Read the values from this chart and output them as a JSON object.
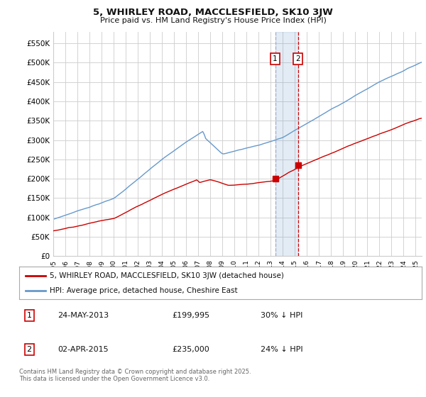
{
  "title": "5, WHIRLEY ROAD, MACCLESFIELD, SK10 3JW",
  "subtitle": "Price paid vs. HM Land Registry's House Price Index (HPI)",
  "legend_line1": "5, WHIRLEY ROAD, MACCLESFIELD, SK10 3JW (detached house)",
  "legend_line2": "HPI: Average price, detached house, Cheshire East",
  "footnote": "Contains HM Land Registry data © Crown copyright and database right 2025.\nThis data is licensed under the Open Government Licence v3.0.",
  "transaction1_label": "1",
  "transaction1_date": "24-MAY-2013",
  "transaction1_price": "£199,995",
  "transaction1_hpi": "30% ↓ HPI",
  "transaction2_label": "2",
  "transaction2_date": "02-APR-2015",
  "transaction2_price": "£235,000",
  "transaction2_hpi": "24% ↓ HPI",
  "red_color": "#cc0000",
  "blue_color": "#6699cc",
  "vline1_color": "#aaaacc",
  "vline2_color": "#cc0000",
  "background_color": "#ffffff",
  "grid_color": "#cccccc",
  "ylim_min": 0,
  "ylim_max": 580000,
  "yticks": [
    0,
    50000,
    100000,
    150000,
    200000,
    250000,
    300000,
    350000,
    400000,
    450000,
    500000,
    550000
  ],
  "ytick_labels": [
    "£0",
    "£50K",
    "£100K",
    "£150K",
    "£200K",
    "£250K",
    "£300K",
    "£350K",
    "£400K",
    "£450K",
    "£500K",
    "£550K"
  ],
  "year_start": 1995,
  "year_end": 2025,
  "transaction1_year": 2013.37,
  "transaction2_year": 2015.25,
  "transaction1_price_val": 199995,
  "transaction2_price_val": 235000
}
